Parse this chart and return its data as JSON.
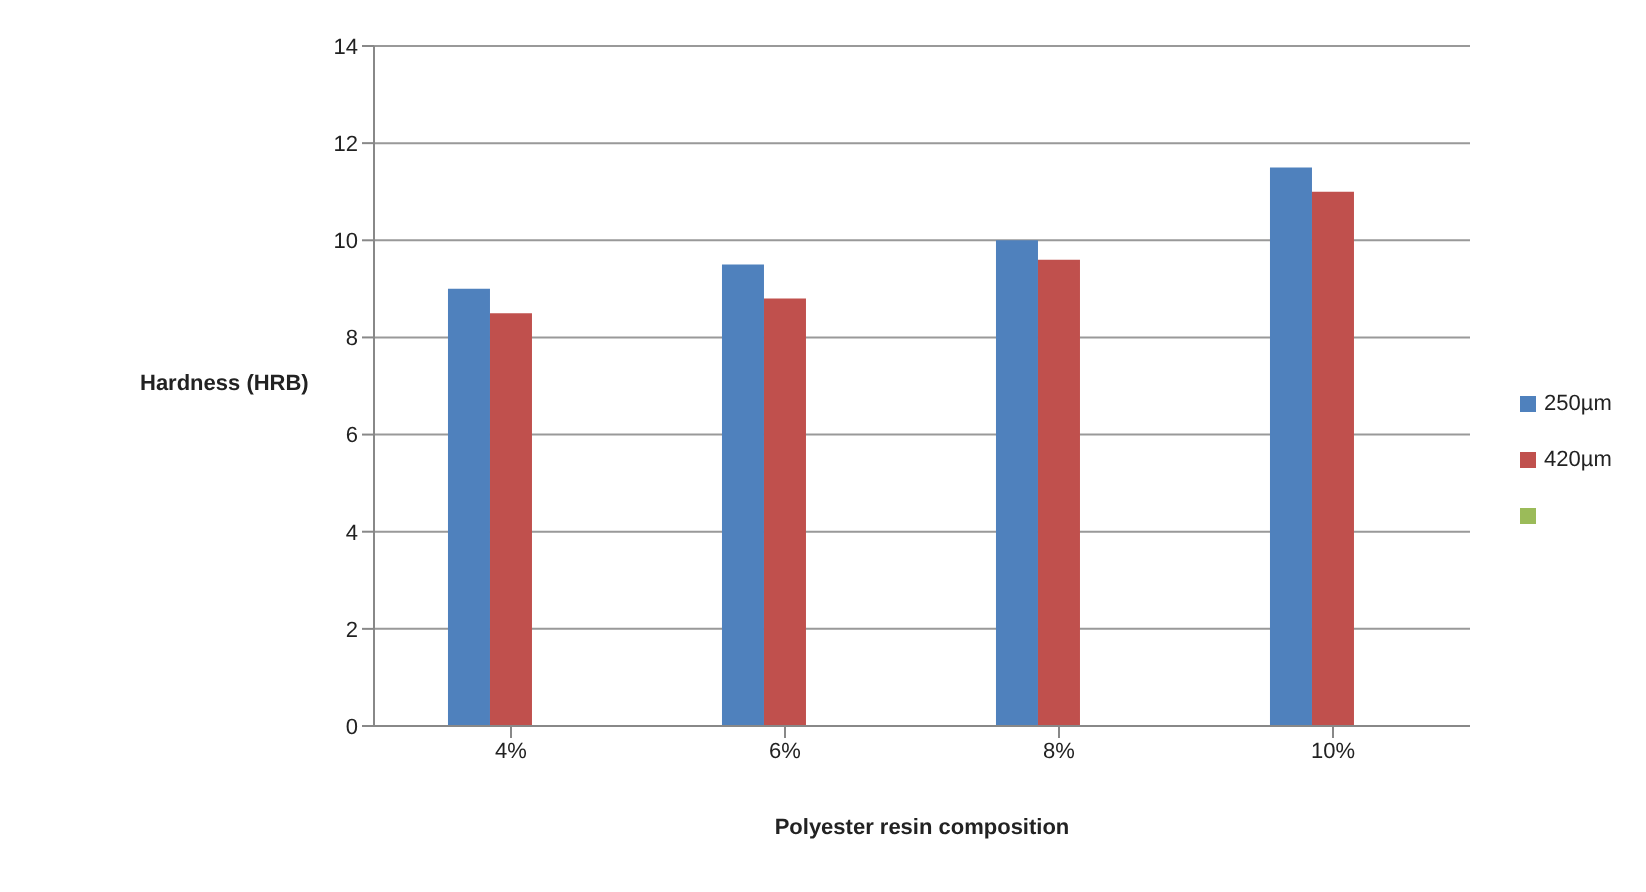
{
  "chart_data": {
    "type": "bar",
    "xlabel": "Polyester resin composition",
    "ylabel": "Hardness (HRB)",
    "categories": [
      "4%",
      "6%",
      "8%",
      "10%"
    ],
    "series": [
      {
        "name": "250µm",
        "color": "#4f81bd",
        "values": [
          9,
          9.5,
          10,
          11.5
        ]
      },
      {
        "name": "420µm",
        "color": "#c0504d",
        "values": [
          8.5,
          8.8,
          9.6,
          11
        ]
      },
      {
        "color": "#9bbb59",
        "values": [
          null,
          null,
          null,
          null
        ]
      }
    ],
    "ylim": [
      0,
      14
    ],
    "yticks": [
      0,
      2,
      4,
      6,
      8,
      10,
      12,
      14
    ],
    "grid": "y",
    "legend": "right"
  }
}
